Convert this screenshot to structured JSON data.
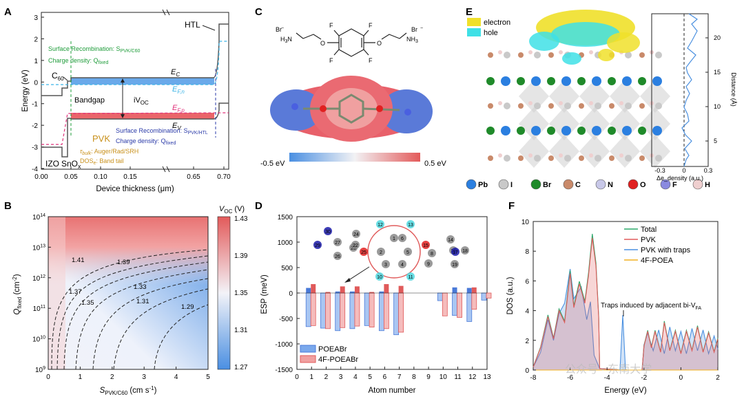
{
  "panels": {
    "A": "A",
    "B": "B",
    "C": "C",
    "D": "D",
    "E": "E",
    "F": "F"
  },
  "chart_data": [
    {
      "panel": "A",
      "type": "line",
      "xlabel": "Device thickness (μm)",
      "ylabel": "Energy (eV)",
      "xticks": [
        "0.00",
        "0.05",
        "0.10",
        "0.15",
        "0.65",
        "0.70"
      ],
      "yticks": [
        "3",
        "2",
        "1",
        "0",
        "-1",
        "-2",
        "-3",
        "-4"
      ],
      "ylim": [
        -4,
        3
      ],
      "layers": [
        "IZO",
        "SnOx",
        "C60",
        "PVK",
        "HTL"
      ],
      "layer_labels": {
        "izo": "IZO",
        "sno": "SnO",
        "sno_sub": "x",
        "c60": "C",
        "c60_sub": "60",
        "pvk": "PVK",
        "htl": "HTL"
      },
      "bands": {
        "ec": "E",
        "ec_sub": "C",
        "ev": "E",
        "ev_sub": "V",
        "efn": "E",
        "efn_sub": "F,n",
        "efp": "E",
        "efp_sub": "F,p"
      },
      "annotations": {
        "surf1_a": "Surface Recombination: S",
        "surf1_sub": "PVK/C60",
        "dens1_a": "Charge density: Q",
        "dens1_sub": "fixed",
        "bandgap": "Bandgap",
        "voc_a": "iV",
        "voc_sub": "OC",
        "surf2_a": "Surface Recombination: S",
        "surf2_sub": "PVK/HTL",
        "dens2_a": "Charge density: Q",
        "dens2_sub": "fixed",
        "tau_a": "τ",
        "tau_sub": "bulk",
        "tau_b": ": Auger/Rad/SRH",
        "dos_a": "DOS",
        "dos_sub": "e",
        "dos_b": ": Band tail"
      },
      "colors": {
        "grid_line": "#444444",
        "efn": "#3ab3e6",
        "efp": "#e0307a",
        "cb_fill": "#5aa0e8",
        "vb_fill": "#e8545a",
        "green": "#1e9c3a",
        "blue_text": "#2a3aa8",
        "gold": "#c8901a"
      }
    },
    {
      "panel": "B",
      "type": "heatmap",
      "xlabel": "S",
      "xlabel_sub": "PVK/C60",
      "xlabel_unit": " (cm s",
      "xlabel_sup": "-1",
      "xlabel_end": ")",
      "ylabel": "Q",
      "ylabel_sub": "fixed",
      "ylabel_unit": " (cm",
      "ylabel_sup": "-2",
      "ylabel_end": ")",
      "xticks": [
        "0",
        "1",
        "2",
        "3",
        "4",
        "5"
      ],
      "yticks_base": [
        "10",
        "10",
        "10",
        "10",
        "10",
        "10"
      ],
      "yticks_exp": [
        "9",
        "10",
        "11",
        "12",
        "13",
        "14"
      ],
      "contour_labels": [
        "1.41",
        "1.39",
        "1.37",
        "1.35",
        "1.33",
        "1.31",
        "1.29"
      ],
      "colorbar_title": "V",
      "colorbar_title_sub": "OC",
      "colorbar_title_end": " (V)",
      "colorbar_ticks": [
        "1.43",
        "1.39",
        "1.35",
        "1.31",
        "1.27"
      ],
      "zlim": [
        1.27,
        1.43
      ]
    },
    {
      "panel": "C",
      "type": "table",
      "counterions": [
        "Br",
        "Br"
      ],
      "amine_left": "H",
      "amine_left_sub": "3",
      "amine_left_end": "N",
      "amine_right": "NH",
      "amine_right_sub": "3",
      "atoms": [
        "F",
        "F",
        "F",
        "F",
        "O",
        "O"
      ],
      "colorbar_min": "-0.5 eV",
      "colorbar_max": "0.5 eV"
    },
    {
      "panel": "D",
      "type": "bar",
      "xlabel": "Atom number",
      "ylabel": "ESP (meV)",
      "xticks": [
        "0",
        "1",
        "2",
        "3",
        "4",
        "5",
        "6",
        "7",
        "8",
        "9",
        "10",
        "11",
        "12",
        "13"
      ],
      "yticks": [
        "1500",
        "1000",
        "500",
        "0",
        "-500",
        "-1000",
        "-1500"
      ],
      "ylim": [
        -1500,
        1500
      ],
      "series": [
        {
          "name": "POEABr",
          "x": [
            1,
            2,
            3,
            4,
            5,
            6,
            7,
            10,
            11,
            12,
            13
          ],
          "values": [
            -660,
            -690,
            -740,
            -700,
            -640,
            -740,
            -820,
            -150,
            -440,
            -560,
            -140
          ],
          "pos": [
            100,
            0,
            30,
            30,
            0,
            30,
            0,
            0,
            110,
            100,
            0
          ]
        },
        {
          "name": "4F-POEABr",
          "x": [
            1,
            2,
            3,
            4,
            5,
            6,
            7,
            10,
            11,
            12,
            13
          ],
          "values": [
            -640,
            -700,
            -680,
            -650,
            -670,
            -700,
            -770,
            -450,
            -480,
            -320,
            -100
          ],
          "pos": [
            175,
            20,
            130,
            130,
            20,
            175,
            140,
            0,
            0,
            110,
            0
          ]
        }
      ],
      "molecule_labels": [
        "30",
        "29",
        "27",
        "26",
        "24",
        "23",
        "22",
        "25",
        "12",
        "13",
        "1",
        "2",
        "3",
        "4",
        "5",
        "6",
        "10",
        "11",
        "15",
        "8",
        "9",
        "14",
        "16",
        "17",
        "18",
        "19"
      ]
    },
    {
      "panel": "E",
      "type": "line",
      "legend": [
        "electron",
        "hole"
      ],
      "legend_colors": [
        "#f0e02a",
        "#3fe0e6"
      ],
      "xlabel": "Δe_density (a.u.)",
      "ylabel": "Distance (Å)",
      "xticks": [
        "-0.3",
        "0",
        "0.3"
      ],
      "yticks": [
        "5",
        "10",
        "15",
        "20"
      ],
      "atom_legend": [
        "Pb",
        "I",
        "Br",
        "C",
        "N",
        "O",
        "F",
        "H"
      ],
      "atom_colors": [
        "#2b7fe0",
        "#c9c9c9",
        "#1f8a2a",
        "#c98a6a",
        "#c8c8e8",
        "#e02020",
        "#8a8ae0",
        "#efcfcf"
      ]
    },
    {
      "panel": "F",
      "type": "line",
      "xlabel": "Energy (eV)",
      "ylabel": "DOS (a.u.)",
      "xticks": [
        "-8",
        "-6",
        "-4",
        "-2",
        "0",
        "2"
      ],
      "yticks": [
        "0",
        "2",
        "4",
        "6",
        "8",
        "10"
      ],
      "xlim": [
        -8,
        2
      ],
      "ylim": [
        0,
        10
      ],
      "series": [
        {
          "name": "Total",
          "color": "#2aa86a"
        },
        {
          "name": "PVK",
          "color": "#e05a5a"
        },
        {
          "name": "PVK with traps",
          "color": "#4a90e0"
        },
        {
          "name": "4F-POEA",
          "color": "#f0b020"
        }
      ],
      "annotation": "Traps induced by adjacent bi-V",
      "annotation_sub": "FA"
    }
  ],
  "watermark": "公众号 · 东南大学"
}
